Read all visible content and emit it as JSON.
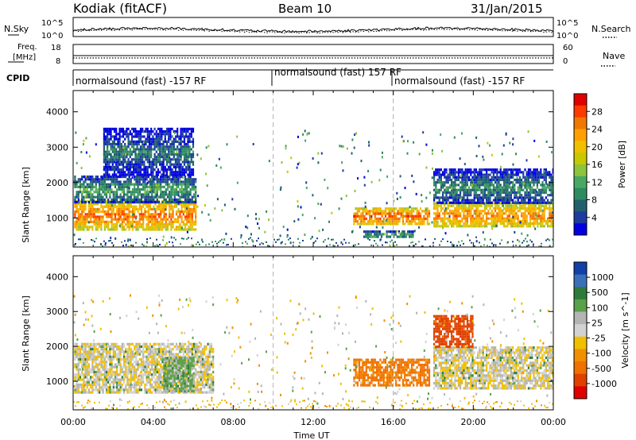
{
  "header": {
    "radar": "Kodiak (fitACF)",
    "beam": "Beam 10",
    "date": "31/Jan/2015"
  },
  "strip_nsky": {
    "left_label": "N.Sky",
    "right_label": "N.Search",
    "left_ticks": [
      "10^5",
      "10^0"
    ],
    "right_ticks": [
      "10^5",
      "10^0"
    ]
  },
  "strip_freq": {
    "left_label_1": "Freq.",
    "left_label_2": "[MHz]",
    "right_label": "Nave",
    "left_ticks": [
      "18",
      "8"
    ],
    "right_ticks": [
      "60",
      "0"
    ]
  },
  "cpid": {
    "label": "CPID",
    "segments": [
      {
        "text": "normalsound (fast) -157 RF",
        "start_hr": 0
      },
      {
        "text": "normalsound (fast) 157 RF",
        "start_hr": 10
      },
      {
        "text": "normalsound (fast) -157 RF",
        "start_hr": 16
      }
    ]
  },
  "axes": {
    "ylabel": "Slant Range [km]",
    "xlabel": "Time UT",
    "x_ticks": [
      "00:00",
      "04:00",
      "08:00",
      "12:00",
      "16:00",
      "20:00",
      "00:00"
    ],
    "x_tick_hours": [
      0,
      4,
      8,
      12,
      16,
      20,
      24
    ],
    "y_ticks": [
      "1000",
      "2000",
      "3000",
      "4000"
    ],
    "y_tick_values": [
      1000,
      2000,
      3000,
      4000
    ]
  },
  "colorbar_power": {
    "title": "Power [dB]",
    "labels": [
      "28",
      "24",
      "20",
      "16",
      "12",
      "8",
      "4"
    ],
    "colors": [
      "#e00000",
      "#ff3a00",
      "#f07800",
      "#ffa000",
      "#f0c000",
      "#c8c800",
      "#8cc43c",
      "#4aa864",
      "#2e8c60",
      "#20606c",
      "#1c3ca0",
      "#0000e0"
    ]
  },
  "colorbar_velocity": {
    "title": "Velocity [m s^-1]",
    "labels": [
      "1000",
      "500",
      "100",
      "25",
      "-25",
      "-100",
      "-500",
      "-1000"
    ],
    "colors": [
      "#1040a8",
      "#3a70b8",
      "#2e7a3a",
      "#58a04a",
      "#b4b4b4",
      "#d2d2d2",
      "#f0c000",
      "#f09000",
      "#f07000",
      "#e04000",
      "#e00000"
    ]
  },
  "chart_data": [
    {
      "type": "heatmap",
      "title": "Power",
      "xlabel": "Time UT",
      "ylabel": "Slant Range [km]",
      "xlim_hours": [
        0,
        24
      ],
      "ylim_km": [
        180,
        4600
      ],
      "colorbar": "Power [dB]",
      "regions": [
        {
          "t0": 0.05,
          "t1": 6.1,
          "r0": 700,
          "r1": 1500,
          "value_db": 26
        },
        {
          "t0": 0.05,
          "t1": 6.1,
          "r0": 1450,
          "r1": 2200,
          "value_db": 13
        },
        {
          "t0": 1.5,
          "t1": 6.0,
          "r0": 2200,
          "r1": 3550,
          "value_db": 10
        },
        {
          "t0": 14.0,
          "t1": 17.8,
          "r0": 850,
          "r1": 1300,
          "value_db": 27
        },
        {
          "t0": 14.5,
          "t1": 17.0,
          "r0": 450,
          "r1": 650,
          "value_db": 14
        },
        {
          "t0": 18.0,
          "t1": 24.0,
          "r0": 750,
          "r1": 1450,
          "value_db": 25
        },
        {
          "t0": 18.0,
          "t1": 24.0,
          "r0": 1400,
          "r1": 2400,
          "value_db": 11
        }
      ]
    },
    {
      "type": "heatmap",
      "title": "Velocity",
      "xlabel": "Time UT",
      "ylabel": "Slant Range [km]",
      "xlim_hours": [
        0,
        24
      ],
      "ylim_km": [
        180,
        4600
      ],
      "colorbar": "Velocity [m s^-1]",
      "regions": [
        {
          "t0": 0.05,
          "t1": 7.0,
          "r0": 700,
          "r1": 2100,
          "value_ms": 0
        },
        {
          "t0": 4.5,
          "t1": 6.0,
          "r0": 700,
          "r1": 1700,
          "value_ms": 120
        },
        {
          "t0": 14.0,
          "t1": 17.8,
          "r0": 850,
          "r1": 1650,
          "value_ms": -300
        },
        {
          "t0": 18.0,
          "t1": 24.0,
          "r0": 800,
          "r1": 2000,
          "value_ms": 0
        },
        {
          "t0": 18.0,
          "t1": 20.0,
          "r0": 2000,
          "r1": 2900,
          "value_ms": -600
        }
      ]
    }
  ]
}
